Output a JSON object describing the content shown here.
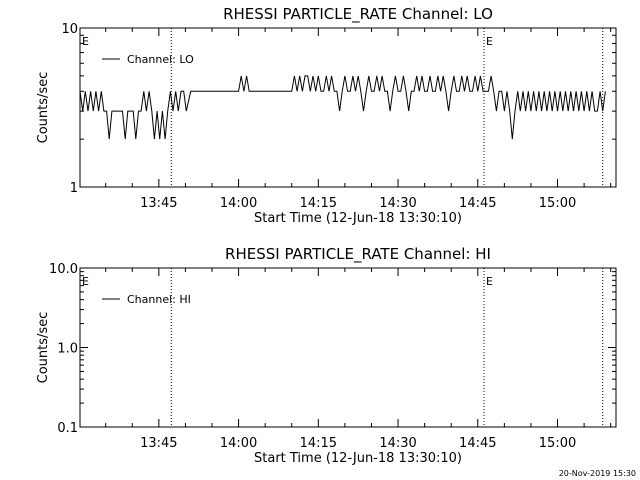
{
  "footer_timestamp": "20-Nov-2019 15:30",
  "chart_data": [
    {
      "type": "line",
      "title": "RHESSI PARTICLE_RATE Channel: LO",
      "xlabel": "Start Time (12-Jun-18 13:30:10)",
      "ylabel": "Counts/sec",
      "y_scale": "log",
      "ylim": [
        1,
        10
      ],
      "y_ticks": [
        "1",
        "10"
      ],
      "xlim": [
        "13:30:10",
        "15:11:00"
      ],
      "x_ticks": [
        "13:45",
        "14:00",
        "14:15",
        "14:30",
        "14:45",
        "15:00"
      ],
      "event_lines": [
        "13:47:20",
        "14:46:10",
        "15:08:30"
      ],
      "event_labels": [
        {
          "time": "13:30:10",
          "label": "E"
        },
        {
          "time": "14:46:10",
          "label": "E"
        }
      ],
      "legend": {
        "placement": "top-left"
      },
      "series": [
        {
          "name": "Channel: LO",
          "x": [
            "13:30:10",
            "13:30:40",
            "13:31:10",
            "13:31:40",
            "13:32:10",
            "13:32:40",
            "13:33:10",
            "13:33:40",
            "13:34:10",
            "13:34:40",
            "13:35:10",
            "13:35:40",
            "13:36:10",
            "13:36:40",
            "13:37:10",
            "13:37:40",
            "13:38:10",
            "13:38:40",
            "13:39:10",
            "13:39:40",
            "13:40:10",
            "13:40:40",
            "13:41:10",
            "13:41:40",
            "13:42:10",
            "13:42:40",
            "13:43:10",
            "13:43:40",
            "13:44:10",
            "13:44:40",
            "13:45:10",
            "13:45:40",
            "13:46:10",
            "13:46:40",
            "13:47:10",
            "13:47:40",
            "13:48:10",
            "13:48:40",
            "13:49:10",
            "13:49:40",
            "13:50:10",
            "13:51:00",
            "13:52:00",
            "13:53:00",
            "13:54:00",
            "13:55:00",
            "13:56:00",
            "13:57:00",
            "13:58:00",
            "13:59:00",
            "14:00:00",
            "14:00:30",
            "14:01:00",
            "14:01:30",
            "14:02:00",
            "14:02:30",
            "14:03:00",
            "14:04:00",
            "14:05:00",
            "14:06:00",
            "14:07:00",
            "14:08:00",
            "14:09:00",
            "14:10:00",
            "14:10:30",
            "14:11:00",
            "14:11:30",
            "14:12:00",
            "14:12:30",
            "14:13:00",
            "14:13:30",
            "14:14:00",
            "14:14:30",
            "14:15:00",
            "14:15:30",
            "14:16:00",
            "14:16:30",
            "14:17:00",
            "14:17:30",
            "14:18:00",
            "14:18:30",
            "14:19:00",
            "14:19:30",
            "14:20:00",
            "14:20:30",
            "14:21:00",
            "14:21:30",
            "14:22:00",
            "14:22:30",
            "14:23:00",
            "14:23:30",
            "14:24:00",
            "14:24:30",
            "14:25:00",
            "14:25:30",
            "14:26:00",
            "14:26:30",
            "14:27:00",
            "14:27:30",
            "14:28:00",
            "14:28:30",
            "14:29:00",
            "14:29:30",
            "14:30:00",
            "14:30:30",
            "14:31:00",
            "14:31:30",
            "14:32:00",
            "14:32:30",
            "14:33:00",
            "14:33:30",
            "14:34:00",
            "14:34:30",
            "14:35:00",
            "14:35:30",
            "14:36:00",
            "14:36:30",
            "14:37:00",
            "14:37:30",
            "14:38:00",
            "14:38:30",
            "14:39:00",
            "14:39:30",
            "14:40:00",
            "14:40:30",
            "14:41:00",
            "14:41:30",
            "14:42:00",
            "14:42:30",
            "14:43:00",
            "14:43:30",
            "14:44:00",
            "14:44:30",
            "14:45:00",
            "14:45:30",
            "14:46:00",
            "14:46:30",
            "14:47:00",
            "14:47:30",
            "14:48:00",
            "14:48:30",
            "14:49:00",
            "14:49:30",
            "14:50:00",
            "14:50:30",
            "14:51:00",
            "14:51:30",
            "14:52:00",
            "14:52:30",
            "14:53:00",
            "14:53:30",
            "14:54:00",
            "14:54:30",
            "14:55:00",
            "14:55:30",
            "14:56:00",
            "14:56:30",
            "14:57:00",
            "14:57:30",
            "14:58:00",
            "14:58:30",
            "14:59:00",
            "14:59:30",
            "15:00:00",
            "15:00:30",
            "15:01:00",
            "15:01:30",
            "15:02:00",
            "15:02:30",
            "15:03:00",
            "15:03:30",
            "15:04:00",
            "15:04:30",
            "15:05:00",
            "15:05:30",
            "15:06:00",
            "15:06:30",
            "15:07:00",
            "15:07:30",
            "15:08:00",
            "15:08:30",
            "15:09:00"
          ],
          "y": [
            4,
            3,
            4,
            3,
            4,
            3,
            4,
            3,
            4,
            3,
            3,
            2,
            3,
            3,
            3,
            3,
            3,
            2,
            3,
            3,
            3,
            2,
            3,
            3,
            4,
            3,
            4,
            3,
            2,
            3,
            2,
            3,
            2,
            3,
            4,
            3,
            4,
            3,
            4,
            4,
            3,
            4,
            4,
            4,
            4,
            4,
            4,
            4,
            4,
            4,
            4,
            5,
            4,
            5,
            4,
            4,
            4,
            4,
            4,
            4,
            4,
            4,
            4,
            4,
            5,
            4,
            5,
            4,
            5,
            5,
            4,
            5,
            4,
            5,
            4,
            4,
            5,
            4,
            5,
            4,
            4,
            3,
            4,
            5,
            4,
            4,
            5,
            4,
            5,
            4,
            3,
            4,
            5,
            4,
            4,
            5,
            4,
            5,
            4,
            4,
            3,
            4,
            5,
            4,
            4,
            5,
            4,
            3,
            4,
            4,
            5,
            4,
            5,
            4,
            4,
            5,
            4,
            4,
            5,
            4,
            5,
            4,
            3,
            4,
            5,
            4,
            4,
            5,
            4,
            5,
            4,
            4,
            5,
            4,
            5,
            4,
            4,
            4,
            5,
            4,
            3,
            4,
            4,
            3,
            4,
            3,
            2,
            3,
            4,
            3,
            4,
            3,
            4,
            3,
            4,
            3,
            4,
            3,
            4,
            3,
            4,
            3,
            4,
            3,
            4,
            3,
            4,
            3,
            4,
            3,
            4,
            3,
            4,
            3,
            4,
            3,
            4,
            3,
            3,
            4,
            3,
            4
          ]
        }
      ]
    },
    {
      "type": "line",
      "title": "RHESSI PARTICLE_RATE Channel: HI",
      "xlabel": "Start Time (12-Jun-18 13:30:10)",
      "ylabel": "Counts/sec",
      "y_scale": "log",
      "ylim": [
        0.1,
        10.0
      ],
      "y_ticks": [
        "0.1",
        "1.0",
        "10.0"
      ],
      "xlim": [
        "13:30:10",
        "15:11:00"
      ],
      "x_ticks": [
        "13:45",
        "14:00",
        "14:15",
        "14:30",
        "14:45",
        "15:00"
      ],
      "event_lines": [
        "13:47:20",
        "14:46:10",
        "15:08:30"
      ],
      "event_labels": [
        {
          "time": "13:30:10",
          "label": "E"
        },
        {
          "time": "14:46:10",
          "label": "E"
        }
      ],
      "legend": {
        "placement": "top-left"
      },
      "series": [
        {
          "name": "Channel: HI",
          "x": [],
          "y": []
        }
      ]
    }
  ]
}
